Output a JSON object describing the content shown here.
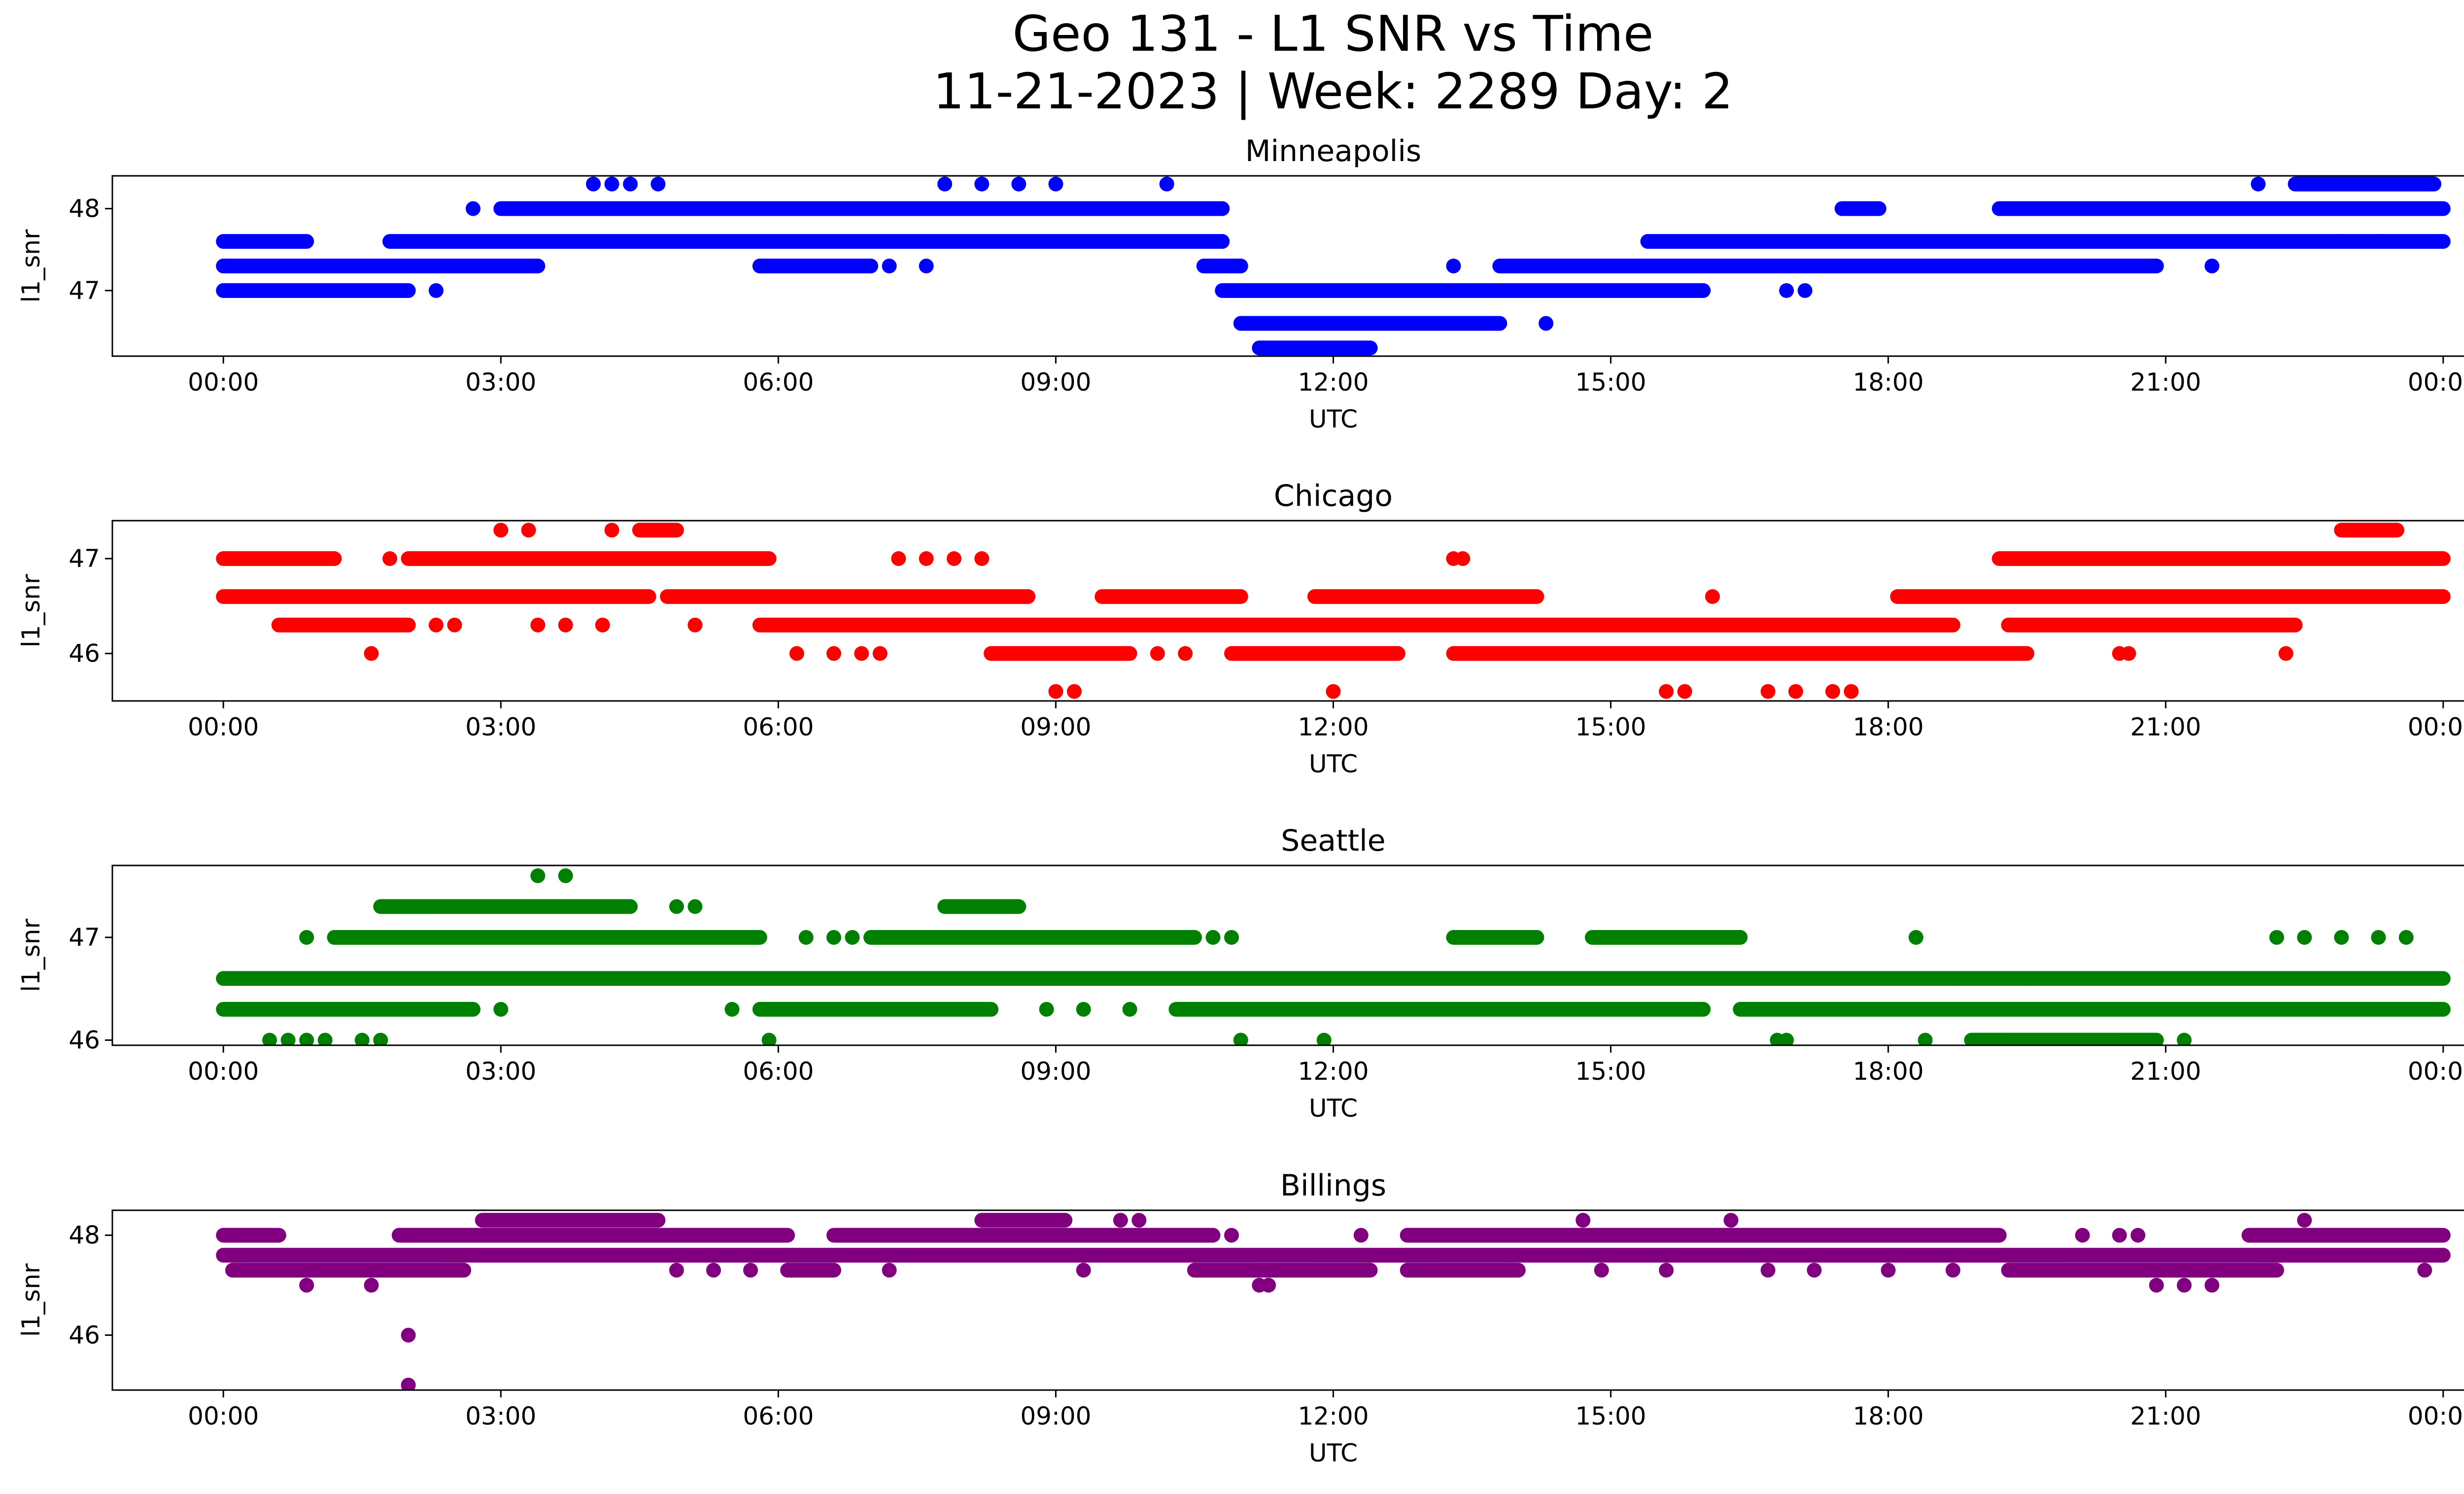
{
  "figure": {
    "title_line1": "Geo 131 - L1 SNR vs Time",
    "title_line2": "11-21-2023 | Week: 2289 Day: 2"
  },
  "chart_data": [
    {
      "type": "scatter",
      "title": "Minneapolis",
      "xlabel": "UTC",
      "ylabel": "l1_snr",
      "color": "#0000ff",
      "x_ticks": [
        "00:00",
        "03:00",
        "06:00",
        "09:00",
        "12:00",
        "15:00",
        "18:00",
        "21:00",
        "00:00"
      ],
      "x_tick_hours": [
        0,
        3,
        6,
        9,
        12,
        15,
        18,
        21,
        24
      ],
      "xlim_hours": [
        -1.2,
        25.2
      ],
      "y_ticks": [
        47,
        48
      ],
      "ylim": [
        46.2,
        48.4
      ],
      "series": [
        {
          "y_levels": [
            47.0,
            47.3,
            47.6,
            48.0,
            48.3,
            47.6,
            48.0,
            48.3,
            47.3,
            47.0,
            46.6,
            46.3,
            47.0,
            47.3,
            47.6,
            48.0,
            48.3
          ],
          "segments": [
            {
              "y": 47.0,
              "x": [
                [
                  0.0,
                  2.0
                ]
              ]
            },
            {
              "y": 47.3,
              "x": [
                [
                  0.0,
                  3.4
                ],
                [
                  5.8,
                  7.0
                ],
                [
                  10.6,
                  11.0
                ],
                [
                  13.8,
                  20.9
                ]
              ]
            },
            {
              "y": 47.6,
              "x": [
                [
                  0.0,
                  0.9
                ],
                [
                  1.8,
                  10.8
                ],
                [
                  15.4,
                  24.0
                ]
              ]
            },
            {
              "y": 48.0,
              "x": [
                [
                  3.0,
                  10.8
                ],
                [
                  17.5,
                  17.9
                ],
                [
                  19.2,
                  24.0
                ]
              ]
            },
            {
              "y": 48.3,
              "x": [
                [
                  22.4,
                  23.9
                ]
              ]
            },
            {
              "y": 47.0,
              "x": [
                [
                  10.8,
                  16.0
                ]
              ]
            },
            {
              "y": 46.6,
              "x": [
                [
                  11.0,
                  13.8
                ]
              ]
            },
            {
              "y": 46.3,
              "x": [
                [
                  11.2,
                  12.4
                ]
              ]
            }
          ],
          "points": [
            [
              2.3,
              47.0
            ],
            [
              2.7,
              48.0
            ],
            [
              4.0,
              48.3
            ],
            [
              4.2,
              48.3
            ],
            [
              4.4,
              48.3
            ],
            [
              4.7,
              48.3
            ],
            [
              6.1,
              47.3
            ],
            [
              7.2,
              47.3
            ],
            [
              7.6,
              47.3
            ],
            [
              7.8,
              48.3
            ],
            [
              8.2,
              48.3
            ],
            [
              8.6,
              48.3
            ],
            [
              9.0,
              48.3
            ],
            [
              10.2,
              48.3
            ],
            [
              13.3,
              47.3
            ],
            [
              14.3,
              46.6
            ],
            [
              16.9,
              47.0
            ],
            [
              17.1,
              47.0
            ],
            [
              21.5,
              47.3
            ],
            [
              22.0,
              48.3
            ],
            [
              22.9,
              47.6
            ],
            [
              23.3,
              47.6
            ]
          ]
        }
      ]
    },
    {
      "type": "scatter",
      "title": "Chicago",
      "xlabel": "UTC",
      "ylabel": "l1_snr",
      "color": "#ff0000",
      "x_ticks": [
        "00:00",
        "03:00",
        "06:00",
        "09:00",
        "12:00",
        "15:00",
        "18:00",
        "21:00",
        "00:00"
      ],
      "x_tick_hours": [
        0,
        3,
        6,
        9,
        12,
        15,
        18,
        21,
        24
      ],
      "xlim_hours": [
        -1.2,
        25.2
      ],
      "y_ticks": [
        46,
        47
      ],
      "ylim": [
        45.5,
        47.4
      ],
      "series": [
        {
          "segments": [
            {
              "y": 47.0,
              "x": [
                [
                  0.0,
                  1.2
                ],
                [
                  2.0,
                  5.9
                ],
                [
                  19.2,
                  24.0
                ]
              ]
            },
            {
              "y": 46.6,
              "x": [
                [
                  0.0,
                  4.6
                ],
                [
                  4.8,
                  8.7
                ],
                [
                  9.5,
                  11.0
                ],
                [
                  11.8,
                  14.2
                ],
                [
                  18.1,
                  24.0
                ]
              ]
            },
            {
              "y": 46.3,
              "x": [
                [
                  0.6,
                  2.0
                ],
                [
                  5.8,
                  18.7
                ],
                [
                  19.3,
                  22.4
                ]
              ]
            },
            {
              "y": 46.0,
              "x": [
                [
                  8.3,
                  9.8
                ],
                [
                  10.9,
                  12.7
                ],
                [
                  13.3,
                  19.5
                ]
              ]
            },
            {
              "y": 47.3,
              "x": [
                [
                  4.5,
                  4.9
                ],
                [
                  22.9,
                  23.5
                ]
              ]
            }
          ],
          "points": [
            [
              1.6,
              46.0
            ],
            [
              1.8,
              47.0
            ],
            [
              2.3,
              46.3
            ],
            [
              2.5,
              46.3
            ],
            [
              3.0,
              47.3
            ],
            [
              3.3,
              47.3
            ],
            [
              3.4,
              46.3
            ],
            [
              3.7,
              46.3
            ],
            [
              4.1,
              46.3
            ],
            [
              4.2,
              47.3
            ],
            [
              5.1,
              46.3
            ],
            [
              6.2,
              46.0
            ],
            [
              6.6,
              46.0
            ],
            [
              6.9,
              46.0
            ],
            [
              7.1,
              46.0
            ],
            [
              7.3,
              47.0
            ],
            [
              7.6,
              47.0
            ],
            [
              7.9,
              47.0
            ],
            [
              8.2,
              47.0
            ],
            [
              9.0,
              45.6
            ],
            [
              9.2,
              45.6
            ],
            [
              10.1,
              46.0
            ],
            [
              10.4,
              46.0
            ],
            [
              12.0,
              45.6
            ],
            [
              13.3,
              47.0
            ],
            [
              13.4,
              47.0
            ],
            [
              15.6,
              45.6
            ],
            [
              15.8,
              45.6
            ],
            [
              16.1,
              46.6
            ],
            [
              16.7,
              45.6
            ],
            [
              17.0,
              45.6
            ],
            [
              17.4,
              45.6
            ],
            [
              17.6,
              45.6
            ],
            [
              20.5,
              46.0
            ],
            [
              20.6,
              46.0
            ],
            [
              22.3,
              46.0
            ]
          ]
        }
      ]
    },
    {
      "type": "scatter",
      "title": "Seattle",
      "xlabel": "UTC",
      "ylabel": "l1_snr",
      "color": "#008000",
      "x_ticks": [
        "00:00",
        "03:00",
        "06:00",
        "09:00",
        "12:00",
        "15:00",
        "18:00",
        "21:00",
        "00:00"
      ],
      "x_tick_hours": [
        0,
        3,
        6,
        9,
        12,
        15,
        18,
        21,
        24
      ],
      "xlim_hours": [
        -1.2,
        25.2
      ],
      "y_ticks": [
        46,
        47
      ],
      "ylim": [
        45.95,
        47.7
      ],
      "series": [
        {
          "segments": [
            {
              "y": 46.6,
              "x": [
                [
                  0.0,
                  24.0
                ]
              ]
            },
            {
              "y": 46.3,
              "x": [
                [
                  0.0,
                  2.7
                ],
                [
                  5.8,
                  8.3
                ],
                [
                  10.3,
                  16.0
                ],
                [
                  16.4,
                  24.0
                ]
              ]
            },
            {
              "y": 47.0,
              "x": [
                [
                  1.2,
                  5.8
                ],
                [
                  7.0,
                  10.5
                ],
                [
                  13.3,
                  14.2
                ],
                [
                  14.8,
                  16.4
                ]
              ]
            },
            {
              "y": 47.3,
              "x": [
                [
                  1.7,
                  4.4
                ],
                [
                  7.8,
                  8.6
                ]
              ]
            },
            {
              "y": 46.0,
              "x": [
                [
                  18.9,
                  20.9
                ]
              ]
            }
          ],
          "points": [
            [
              0.5,
              46.0
            ],
            [
              0.7,
              46.0
            ],
            [
              0.9,
              46.0
            ],
            [
              1.1,
              46.0
            ],
            [
              1.5,
              46.0
            ],
            [
              1.7,
              46.0
            ],
            [
              0.9,
              47.0
            ],
            [
              3.0,
              46.3
            ],
            [
              3.4,
              47.6
            ],
            [
              3.7,
              47.6
            ],
            [
              4.9,
              47.3
            ],
            [
              5.1,
              47.3
            ],
            [
              5.5,
              46.3
            ],
            [
              5.9,
              46.0
            ],
            [
              6.3,
              47.0
            ],
            [
              6.6,
              47.0
            ],
            [
              6.8,
              47.0
            ],
            [
              8.9,
              46.3
            ],
            [
              9.3,
              46.3
            ],
            [
              9.8,
              46.3
            ],
            [
              10.7,
              47.0
            ],
            [
              10.9,
              47.0
            ],
            [
              11.0,
              46.0
            ],
            [
              11.9,
              46.0
            ],
            [
              16.5,
              46.3
            ],
            [
              16.8,
              46.0
            ],
            [
              16.9,
              46.0
            ],
            [
              18.3,
              47.0
            ],
            [
              18.4,
              46.0
            ],
            [
              18.7,
              46.6
            ],
            [
              19.3,
              46.6
            ],
            [
              19.5,
              46.6
            ],
            [
              21.2,
              46.0
            ],
            [
              22.2,
              47.0
            ],
            [
              22.5,
              47.0
            ],
            [
              22.9,
              47.0
            ],
            [
              23.3,
              47.0
            ],
            [
              23.6,
              47.0
            ]
          ]
        }
      ]
    },
    {
      "type": "scatter",
      "title": "Billings",
      "xlabel": "UTC",
      "ylabel": "l1_snr",
      "color": "#800080",
      "x_ticks": [
        "00:00",
        "03:00",
        "06:00",
        "09:00",
        "12:00",
        "15:00",
        "18:00",
        "21:00",
        "00:00"
      ],
      "x_tick_hours": [
        0,
        3,
        6,
        9,
        12,
        15,
        18,
        21,
        24
      ],
      "xlim_hours": [
        -1.2,
        25.2
      ],
      "y_ticks": [
        46,
        48
      ],
      "ylim": [
        44.9,
        48.5
      ],
      "series": [
        {
          "segments": [
            {
              "y": 47.6,
              "x": [
                [
                  0.0,
                  24.0
                ]
              ]
            },
            {
              "y": 48.0,
              "x": [
                [
                  0.0,
                  0.6
                ],
                [
                  1.9,
                  6.1
                ],
                [
                  6.6,
                  10.7
                ],
                [
                  12.8,
                  19.2
                ],
                [
                  21.9,
                  24.0
                ]
              ]
            },
            {
              "y": 47.3,
              "x": [
                [
                  0.1,
                  2.6
                ],
                [
                  6.1,
                  6.6
                ],
                [
                  10.5,
                  12.4
                ],
                [
                  12.8,
                  14.0
                ],
                [
                  19.3,
                  22.2
                ]
              ]
            },
            {
              "y": 48.3,
              "x": [
                [
                  2.8,
                  4.7
                ],
                [
                  8.2,
                  9.1
                ]
              ]
            }
          ],
          "points": [
            [
              0.9,
              47.0
            ],
            [
              1.6,
              47.0
            ],
            [
              2.0,
              46.0
            ],
            [
              2.0,
              45.0
            ],
            [
              4.9,
              47.3
            ],
            [
              5.3,
              47.3
            ],
            [
              5.7,
              47.3
            ],
            [
              7.2,
              47.3
            ],
            [
              9.3,
              47.3
            ],
            [
              9.7,
              48.3
            ],
            [
              9.9,
              48.3
            ],
            [
              10.9,
              48.0
            ],
            [
              11.2,
              47.0
            ],
            [
              11.3,
              47.0
            ],
            [
              12.3,
              48.0
            ],
            [
              14.7,
              48.3
            ],
            [
              14.9,
              47.3
            ],
            [
              15.6,
              47.3
            ],
            [
              16.3,
              48.3
            ],
            [
              16.7,
              47.3
            ],
            [
              17.2,
              47.3
            ],
            [
              18.0,
              47.3
            ],
            [
              18.7,
              47.3
            ],
            [
              20.1,
              48.0
            ],
            [
              20.5,
              48.0
            ],
            [
              20.7,
              48.0
            ],
            [
              20.9,
              47.0
            ],
            [
              21.2,
              47.0
            ],
            [
              21.5,
              47.0
            ],
            [
              22.5,
              48.3
            ],
            [
              23.8,
              47.3
            ]
          ]
        }
      ]
    }
  ]
}
